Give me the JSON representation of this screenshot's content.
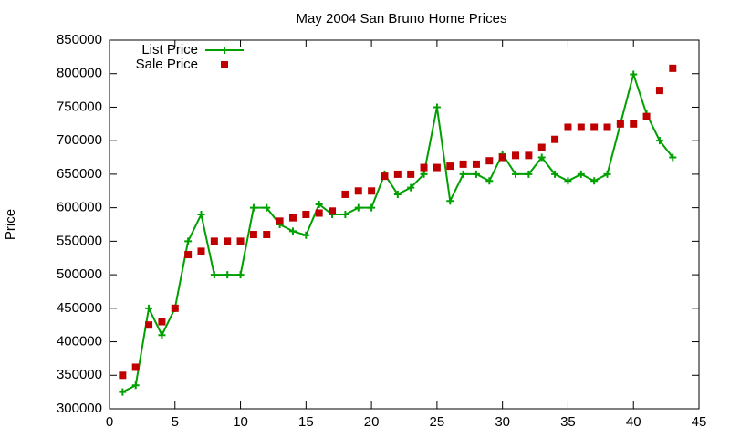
{
  "chart_data": {
    "type": "line",
    "title": "May 2004 San Bruno Home Prices",
    "y_label": "Price",
    "x": [
      1,
      2,
      3,
      4,
      5,
      6,
      7,
      8,
      9,
      10,
      11,
      12,
      13,
      14,
      15,
      16,
      17,
      18,
      19,
      20,
      21,
      22,
      23,
      24,
      25,
      26,
      27,
      28,
      29,
      30,
      31,
      32,
      33,
      34,
      35,
      36,
      37,
      38,
      39,
      40,
      41,
      42,
      43
    ],
    "series": [
      {
        "name": "List Price",
        "color": "#00a000",
        "style": "linespoints",
        "marker": "plus",
        "values": [
          325000,
          335000,
          450000,
          410000,
          450000,
          550000,
          590000,
          500000,
          500000,
          500000,
          600000,
          600000,
          575000,
          565000,
          559000,
          605000,
          590000,
          590000,
          600000,
          600000,
          650000,
          620000,
          630000,
          650000,
          750000,
          610000,
          650000,
          650000,
          640000,
          680000,
          650000,
          650000,
          675000,
          650000,
          640000,
          650000,
          640000,
          650000,
          725000,
          799000,
          740000,
          700000,
          675000
        ]
      },
      {
        "name": "Sale Price",
        "color": "#c00000",
        "style": "points",
        "marker": "square",
        "values": [
          350000,
          362000,
          425000,
          430000,
          450000,
          530000,
          535000,
          550000,
          550000,
          550000,
          560000,
          560000,
          580000,
          585000,
          590000,
          592000,
          595000,
          620000,
          625000,
          625000,
          647000,
          650000,
          650000,
          660000,
          660000,
          662000,
          665000,
          665000,
          670000,
          675000,
          678000,
          678000,
          690000,
          702000,
          720000,
          720000,
          720000,
          720000,
          725000,
          725000,
          736000,
          775000,
          808000
        ]
      }
    ],
    "xlim": [
      0,
      45
    ],
    "xticks": [
      0,
      5,
      10,
      15,
      20,
      25,
      30,
      35,
      40,
      45
    ],
    "ylim": [
      300000,
      850000
    ],
    "yticks": [
      300000,
      350000,
      400000,
      450000,
      500000,
      550000,
      600000,
      650000,
      700000,
      750000,
      800000,
      850000
    ],
    "grid": false,
    "legend_position": "top-left"
  }
}
